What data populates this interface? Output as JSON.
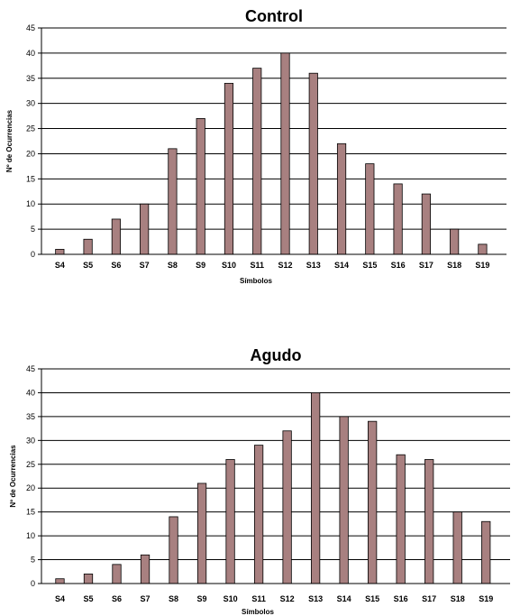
{
  "chart_data": [
    {
      "type": "bar",
      "title": "Control",
      "xlabel": "Símbolos",
      "ylabel": "Nº de Ocurrencias",
      "ylim": [
        0,
        45
      ],
      "yticks": [
        0,
        5,
        10,
        15,
        20,
        25,
        30,
        35,
        40,
        45
      ],
      "grid": true,
      "categories": [
        "S4",
        "S5",
        "S6",
        "S7",
        "S8",
        "S9",
        "S10",
        "S11",
        "S12",
        "S13",
        "S14",
        "S15",
        "S16",
        "S17",
        "S18",
        "S19"
      ],
      "values": [
        1,
        3,
        7,
        10,
        21,
        27,
        34,
        37,
        40,
        36,
        22,
        18,
        14,
        12,
        5,
        2
      ],
      "bar_color": "#a88080"
    },
    {
      "type": "bar",
      "title": "Agudo",
      "xlabel": "Símbolos",
      "ylabel": "Nº de Ocurrencias",
      "ylim": [
        0,
        45
      ],
      "yticks": [
        0,
        5,
        10,
        15,
        20,
        25,
        30,
        35,
        40,
        45
      ],
      "grid": true,
      "categories": [
        "S4",
        "S5",
        "S6",
        "S7",
        "S8",
        "S9",
        "S10",
        "S11",
        "S12",
        "S13",
        "S14",
        "S15",
        "S16",
        "S17",
        "S18",
        "S19"
      ],
      "values": [
        1,
        2,
        4,
        6,
        14,
        21,
        26,
        29,
        32,
        40,
        35,
        34,
        27,
        26,
        15,
        13
      ],
      "bar_color": "#a88080"
    }
  ]
}
